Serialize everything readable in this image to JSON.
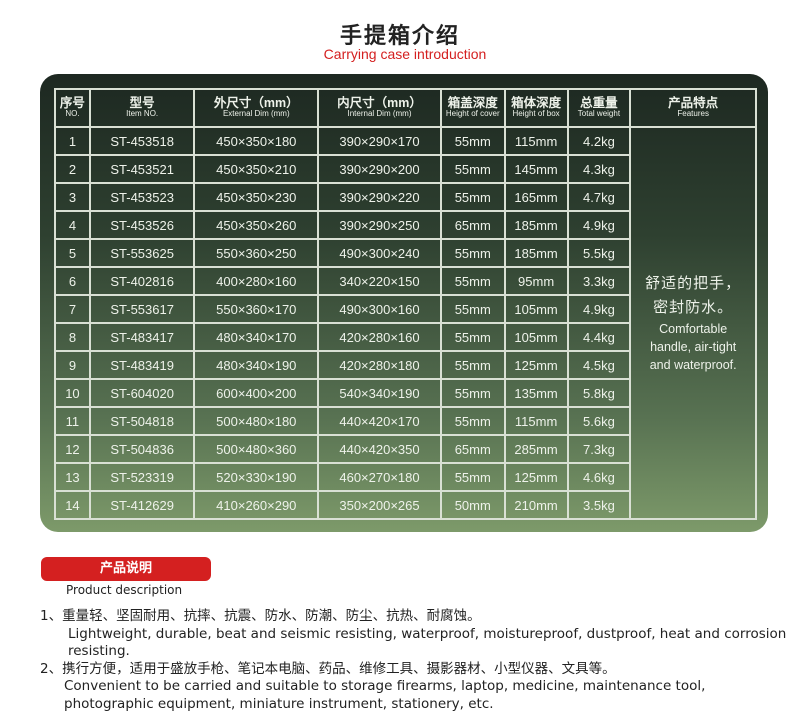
{
  "title": {
    "cn": "手提箱介绍",
    "en": "Carrying case introduction"
  },
  "table": {
    "headers": [
      {
        "cn": "序号",
        "en": "NO."
      },
      {
        "cn": "型号",
        "en": "Item NO."
      },
      {
        "cn": "外尺寸（mm）",
        "en": "External Dim (mm)"
      },
      {
        "cn": "内尺寸（mm）",
        "en": "Internal Dim (mm)"
      },
      {
        "cn": "箱盖深度",
        "en": "Height of cover"
      },
      {
        "cn": "箱体深度",
        "en": "Height of box"
      },
      {
        "cn": "总重量",
        "en": "Total weight"
      },
      {
        "cn": "产品特点",
        "en": "Features"
      }
    ],
    "rows": [
      [
        "1",
        "ST-453518",
        "450×350×180",
        "390×290×170",
        "55mm",
        "115mm",
        "4.2kg"
      ],
      [
        "2",
        "ST-453521",
        "450×350×210",
        "390×290×200",
        "55mm",
        "145mm",
        "4.3kg"
      ],
      [
        "3",
        "ST-453523",
        "450×350×230",
        "390×290×220",
        "55mm",
        "165mm",
        "4.7kg"
      ],
      [
        "4",
        "ST-453526",
        "450×350×260",
        "390×290×250",
        "65mm",
        "185mm",
        "4.9kg"
      ],
      [
        "5",
        "ST-553625",
        "550×360×250",
        "490×300×240",
        "55mm",
        "185mm",
        "5.5kg"
      ],
      [
        "6",
        "ST-402816",
        "400×280×160",
        "340×220×150",
        "55mm",
        "95mm",
        "3.3kg"
      ],
      [
        "7",
        "ST-553617",
        "550×360×170",
        "490×300×160",
        "55mm",
        "105mm",
        "4.9kg"
      ],
      [
        "8",
        "ST-483417",
        "480×340×170",
        "420×280×160",
        "55mm",
        "105mm",
        "4.4kg"
      ],
      [
        "9",
        "ST-483419",
        "480×340×190",
        "420×280×180",
        "55mm",
        "125mm",
        "4.5kg"
      ],
      [
        "10",
        "ST-604020",
        "600×400×200",
        "540×340×190",
        "55mm",
        "135mm",
        "5.8kg"
      ],
      [
        "11",
        "ST-504818",
        "500×480×180",
        "440×420×170",
        "55mm",
        "115mm",
        "5.6kg"
      ],
      [
        "12",
        "ST-504836",
        "500×480×360",
        "440×420×350",
        "65mm",
        "285mm",
        "7.3kg"
      ],
      [
        "13",
        "ST-523319",
        "520×330×190",
        "460×270×180",
        "55mm",
        "125mm",
        "4.6kg"
      ],
      [
        "14",
        "ST-412629",
        "410×260×290",
        "350×200×265",
        "50mm",
        "210mm",
        "3.5kg"
      ]
    ],
    "features": {
      "cn1": "舒适的把手，",
      "cn2": "密封防水。",
      "en1": "Comfortable",
      "en2": "handle, air-tight",
      "en3": "and waterproof."
    }
  },
  "description": {
    "badge_cn": "产品说明",
    "badge_en": "Product description",
    "items": [
      {
        "cn": "1、重量轻、坚固耐用、抗摔、抗震、防水、防潮、防尘、抗热、耐腐蚀。",
        "en": "Lightweight, durable, beat and seismic resisting, waterproof, moistureproof, dustproof, heat and corrosion resisting."
      },
      {
        "cn": "2、携行方便，适用于盛放手枪、笔记本电脑、药品、维修工具、摄影器材、小型仪器、文具等。",
        "en": "Convenient to be carried and suitable to storage firearms, laptop, medicine, maintenance tool, photographic equipment, miniature instrument, stationery, etc."
      }
    ]
  }
}
